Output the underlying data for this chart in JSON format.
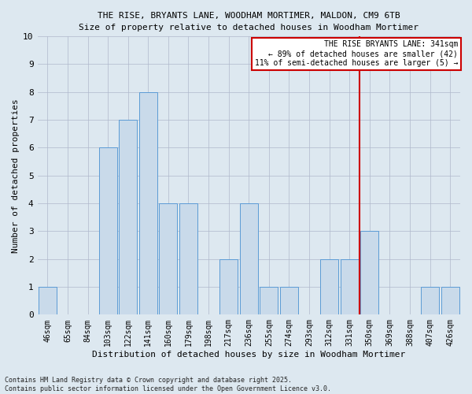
{
  "title_line1": "THE RISE, BRYANTS LANE, WOODHAM MORTIMER, MALDON, CM9 6TB",
  "title_line2": "Size of property relative to detached houses in Woodham Mortimer",
  "xlabel": "Distribution of detached houses by size in Woodham Mortimer",
  "ylabel": "Number of detached properties",
  "categories": [
    "46sqm",
    "65sqm",
    "84sqm",
    "103sqm",
    "122sqm",
    "141sqm",
    "160sqm",
    "179sqm",
    "198sqm",
    "217sqm",
    "236sqm",
    "255sqm",
    "274sqm",
    "293sqm",
    "312sqm",
    "331sqm",
    "350sqm",
    "369sqm",
    "388sqm",
    "407sqm",
    "426sqm"
  ],
  "values": [
    1,
    0,
    0,
    6,
    7,
    8,
    4,
    4,
    0,
    2,
    4,
    1,
    1,
    0,
    2,
    2,
    3,
    0,
    0,
    1,
    1
  ],
  "bar_color": "#c9daea",
  "bar_edge_color": "#5b9bd5",
  "ylim": [
    0,
    10
  ],
  "yticks": [
    0,
    1,
    2,
    3,
    4,
    5,
    6,
    7,
    8,
    9,
    10
  ],
  "annotation_text": "THE RISE BRYANTS LANE: 341sqm\n← 89% of detached houses are smaller (42)\n11% of semi-detached houses are larger (5) →",
  "vline_category_index": 16,
  "annotation_box_color": "#ffffff",
  "annotation_box_edge": "#cc0000",
  "vline_color": "#cc0000",
  "footnote": "Contains HM Land Registry data © Crown copyright and database right 2025.\nContains public sector information licensed under the Open Government Licence v3.0.",
  "background_color": "#dde8f0"
}
